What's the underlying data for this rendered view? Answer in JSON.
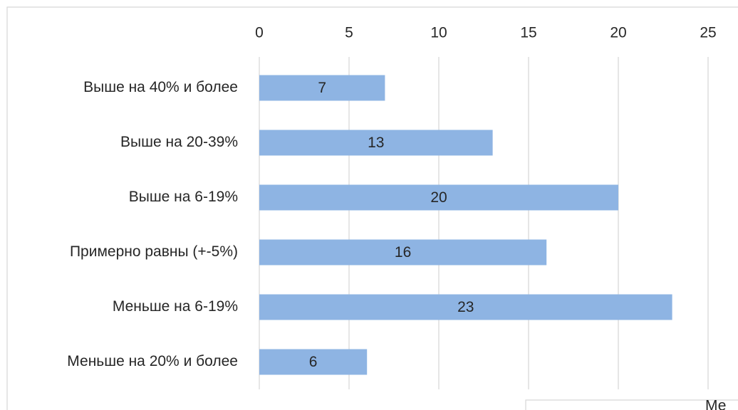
{
  "chart_data": {
    "type": "bar",
    "orientation": "horizontal",
    "categories": [
      "Выше на 40% и более",
      "Выше на 20-39%",
      "Выше на 6-19%",
      "Примерно равны (+-5%)",
      "Меньше на 6-19%",
      "Меньше на 20% и более"
    ],
    "values": [
      7,
      13,
      20,
      16,
      23,
      6
    ],
    "color": "#8eb4e3",
    "xlim": [
      0,
      25
    ],
    "xticks": [
      0,
      5,
      10,
      15,
      20,
      25
    ],
    "grid": true,
    "annotation": "Ме"
  }
}
